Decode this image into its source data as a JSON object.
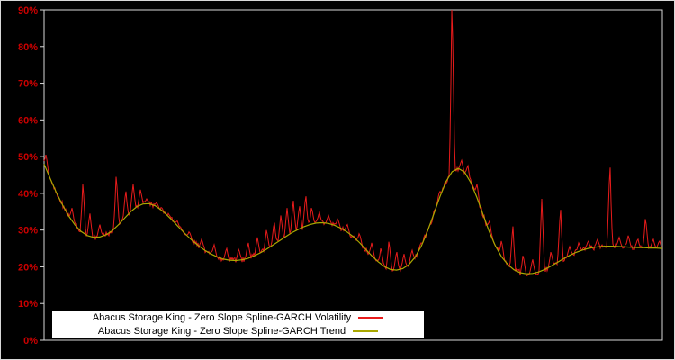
{
  "colors": {
    "background": "#000000",
    "frame": "#d8d8d8",
    "axis_label": "#cc0000",
    "volatility": "#e81b1b",
    "trend": "#aaa800",
    "legend_bg": "#ffffff",
    "legend_text": "#000000"
  },
  "legend": {
    "volatility_label": "Abacus Storage King - Zero Slope Spline-GARCH Volatility",
    "trend_label": "Abacus Storage King - Zero Slope Spline-GARCH Trend"
  },
  "chart_data": {
    "type": "line",
    "title": "",
    "xlabel": "",
    "ylabel": "",
    "ylim": [
      0,
      90
    ],
    "yticks": [
      {
        "value": 0,
        "label": "0%"
      },
      {
        "value": 10,
        "label": "10%"
      },
      {
        "value": 20,
        "label": "20%"
      },
      {
        "value": 30,
        "label": "30%"
      },
      {
        "value": 40,
        "label": "40%"
      },
      {
        "value": 50,
        "label": "50%"
      },
      {
        "value": 60,
        "label": "60%"
      },
      {
        "value": 70,
        "label": "70%"
      },
      {
        "value": 80,
        "label": "80%"
      },
      {
        "value": 90,
        "label": "90%"
      }
    ],
    "x_range": [
      0,
      100
    ],
    "grid": false,
    "legend_position": "bottom-left-inside",
    "series": [
      {
        "name": "Abacus Storage King - Zero Slope Spline-GARCH Volatility",
        "style": "spiky",
        "base": "trend",
        "noise_amplitude": 0.8,
        "spike_width": 0.45,
        "spikes_xy": [
          [
            0.3,
            50.5
          ],
          [
            4.5,
            36
          ],
          [
            6.3,
            42.5
          ],
          [
            7.4,
            34.5
          ],
          [
            9,
            31.5
          ],
          [
            11.7,
            44.5
          ],
          [
            13.2,
            40.5
          ],
          [
            14.4,
            42.5
          ],
          [
            15.6,
            41
          ],
          [
            16.6,
            38.5
          ],
          [
            18.2,
            37.5
          ],
          [
            19.5,
            34.5
          ],
          [
            21.5,
            32.5
          ],
          [
            23.5,
            29.5
          ],
          [
            25.5,
            27.5
          ],
          [
            27.5,
            26
          ],
          [
            29.5,
            25
          ],
          [
            31.5,
            24.8
          ],
          [
            33,
            26.5
          ],
          [
            34.5,
            28
          ],
          [
            36,
            30
          ],
          [
            37.2,
            32
          ],
          [
            38.3,
            34
          ],
          [
            39.3,
            36
          ],
          [
            40.3,
            38
          ],
          [
            41.3,
            36.5
          ],
          [
            42.3,
            39.2
          ],
          [
            43.3,
            36
          ],
          [
            44.5,
            34.8
          ],
          [
            46,
            34
          ],
          [
            47.5,
            33
          ],
          [
            49,
            31.5
          ],
          [
            51,
            29
          ],
          [
            53,
            26.5
          ],
          [
            54.5,
            25
          ],
          [
            55.8,
            26.8
          ],
          [
            57,
            24
          ],
          [
            58.2,
            23.5
          ],
          [
            59.5,
            24.5
          ],
          [
            61,
            26.5
          ],
          [
            62.5,
            30.5
          ],
          [
            64,
            40.5
          ],
          [
            66,
            90.5
          ],
          [
            67.5,
            49
          ],
          [
            68.5,
            47.5
          ],
          [
            70,
            42.5
          ],
          [
            72,
            32.5
          ],
          [
            74,
            27
          ],
          [
            75.8,
            31
          ],
          [
            77.5,
            23
          ],
          [
            79,
            22
          ],
          [
            80.5,
            38.5
          ],
          [
            82,
            24
          ],
          [
            83.5,
            35.5
          ],
          [
            85,
            25.5
          ],
          [
            86.5,
            26.5
          ],
          [
            88,
            27
          ],
          [
            89.5,
            27.5
          ],
          [
            91.5,
            47
          ],
          [
            93,
            28
          ],
          [
            94.5,
            28.5
          ],
          [
            96,
            27.5
          ],
          [
            97.3,
            33
          ],
          [
            98.5,
            27.5
          ],
          [
            99.5,
            27
          ]
        ]
      },
      {
        "name": "Abacus Storage King - Zero Slope Spline-GARCH Trend",
        "style": "smooth",
        "values": [
          48.0,
          44.0,
          40.2,
          36.8,
          33.8,
          31.4,
          29.6,
          28.5,
          28.0,
          28.1,
          28.7,
          29.8,
          31.4,
          33.2,
          35.0,
          36.4,
          37.1,
          37.2,
          36.6,
          35.4,
          33.9,
          32.2,
          30.4,
          28.7,
          27.1,
          25.7,
          24.5,
          23.5,
          22.7,
          22.1,
          21.8,
          21.7,
          21.9,
          22.3,
          23.0,
          23.8,
          24.8,
          25.9,
          27.0,
          28.1,
          29.2,
          30.1,
          30.9,
          31.5,
          31.9,
          32.0,
          31.8,
          31.3,
          30.5,
          29.5,
          28.2,
          26.6,
          24.8,
          23.0,
          21.4,
          20.1,
          19.3,
          19.1,
          19.5,
          20.6,
          22.6,
          25.6,
          29.6,
          34.2,
          39.0,
          43.2,
          45.9,
          46.8,
          45.8,
          43.0,
          38.9,
          34.2,
          29.6,
          25.7,
          22.7,
          20.6,
          19.2,
          18.4,
          18.1,
          18.2,
          18.6,
          19.3,
          20.2,
          21.2,
          22.2,
          23.1,
          23.9,
          24.5,
          25.0,
          25.3,
          25.5,
          25.6,
          25.6,
          25.5,
          25.4,
          25.3,
          25.2,
          25.2,
          25.1,
          25.1,
          25.0
        ]
      }
    ]
  }
}
